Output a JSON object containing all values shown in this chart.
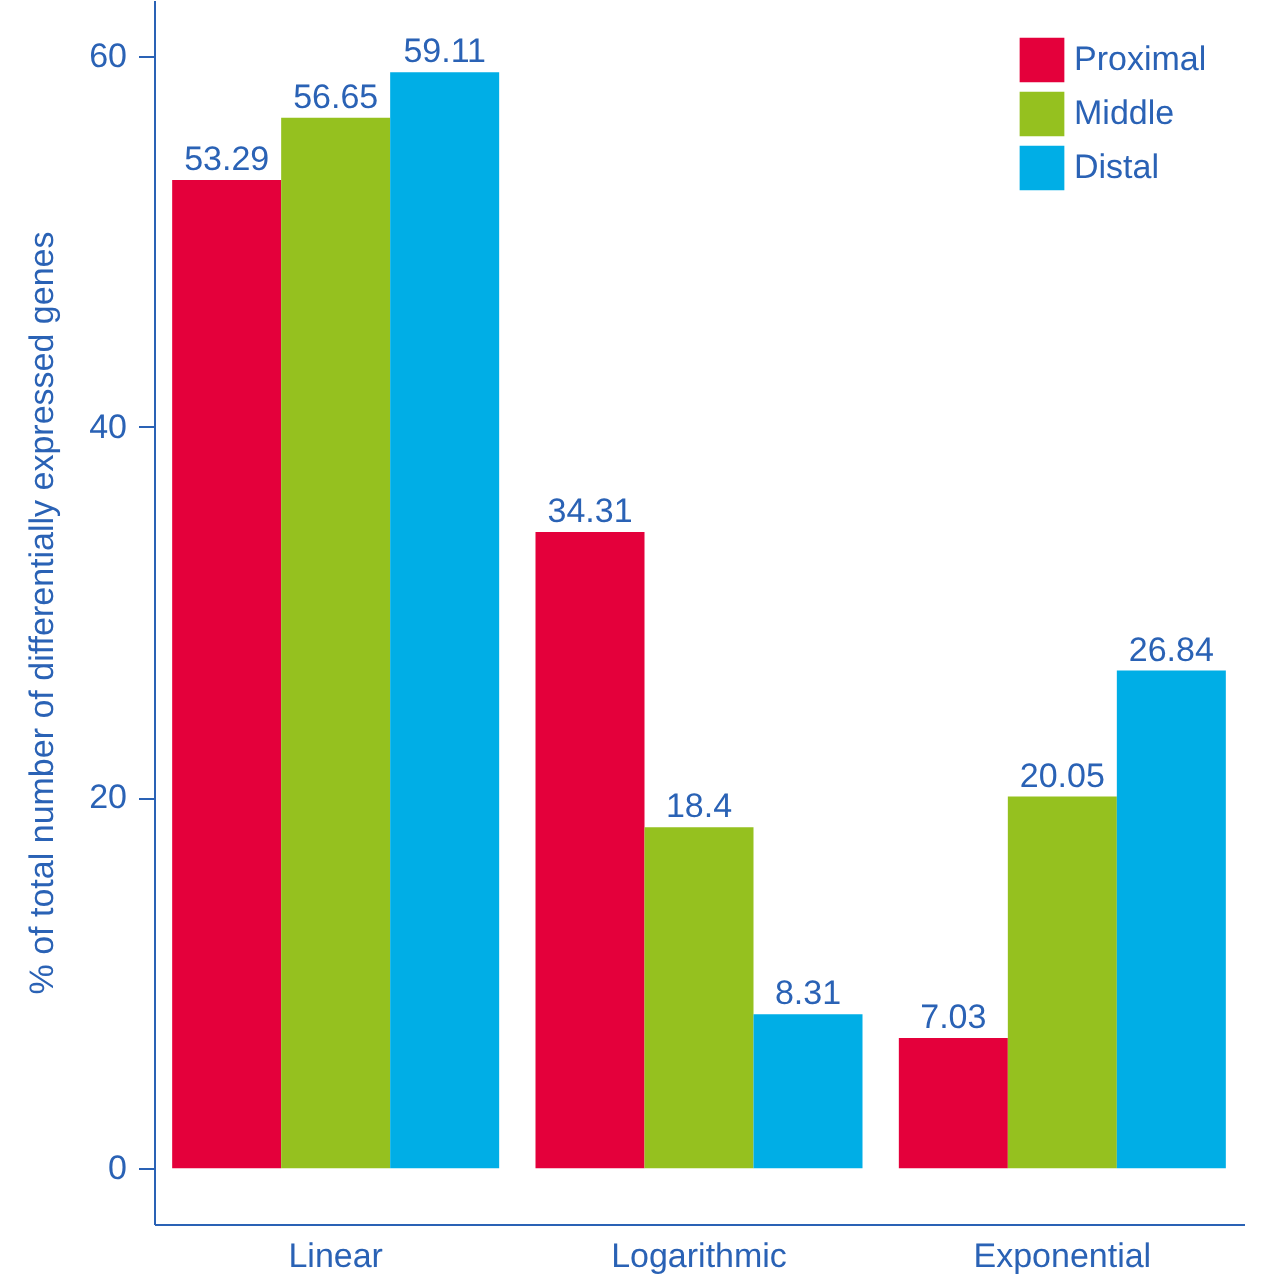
{
  "chart_data": {
    "type": "bar",
    "ylabel": "% of total number of differentially expressed genes",
    "categories": [
      "Linear",
      "Logarithmic",
      "Exponential"
    ],
    "series": [
      {
        "name": "Proximal",
        "color": "#e4003b",
        "values": [
          53.29,
          34.31,
          7.03
        ]
      },
      {
        "name": "Middle",
        "color": "#95c11f",
        "values": [
          56.65,
          18.4,
          20.05
        ]
      },
      {
        "name": "Distal",
        "color": "#00aee6",
        "values": [
          59.11,
          8.31,
          26.84
        ]
      }
    ],
    "ylim": [
      -3,
      63
    ],
    "yticks": [
      0,
      20,
      40,
      60
    ],
    "data_labels": true,
    "legend": "top right",
    "grid": false
  }
}
